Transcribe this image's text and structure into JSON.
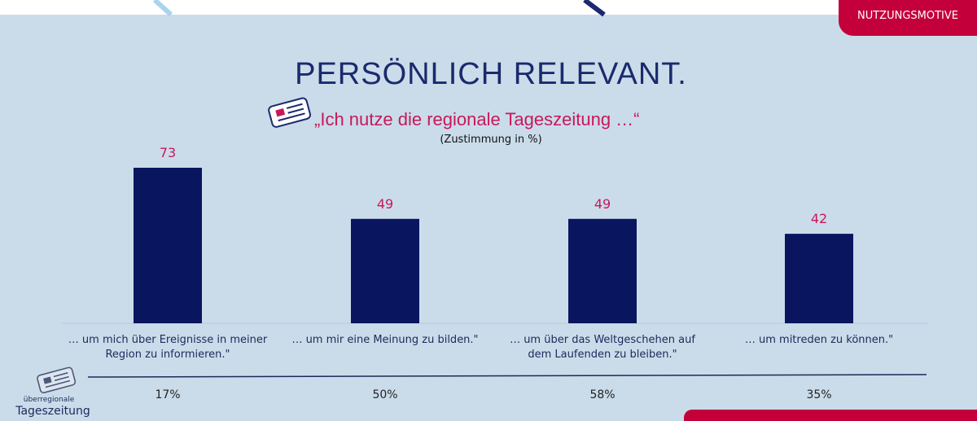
{
  "tag": "NUTZUNGSMOTIVE",
  "chart_data": {
    "type": "bar",
    "title": "PERSÖNLICH RELEVANT.",
    "subtitle": "„Ich nutze die regionale Tageszeitung …“",
    "note": "(Zustimmung in %)",
    "categories": [
      "… um mich über Ereignisse in meiner Region zu informieren.\"",
      "… um mir eine Meinung zu bilden.\"",
      "… um über das Weltgeschehen auf dem Laufenden zu bleiben.\"",
      "… um mitreden zu können.\""
    ],
    "values": [
      73,
      49,
      49,
      42
    ],
    "color": "#0a1560",
    "label_color": "#c8185a"
  },
  "comparison": {
    "label_small": "überregionale",
    "label": "Tageszeitung",
    "values": [
      17,
      50,
      58,
      35
    ],
    "value_labels": [
      "17%",
      "50%",
      "58%",
      "35%"
    ]
  }
}
